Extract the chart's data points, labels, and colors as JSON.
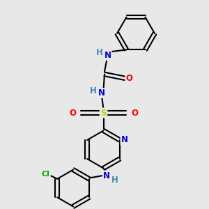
{
  "background_color": "#e8e8e8",
  "bond_color": "#000000",
  "bond_width": 1.5,
  "atom_colors": {
    "N": "#0000ee",
    "O": "#ff0000",
    "S": "#cccc00",
    "Cl": "#00aa00",
    "H": "#4488aa",
    "C": "#000000"
  },
  "font_size": 8.5,
  "fig_width": 3.0,
  "fig_height": 3.0,
  "dpi": 100,
  "xlim": [
    0,
    10
  ],
  "ylim": [
    0,
    10
  ]
}
